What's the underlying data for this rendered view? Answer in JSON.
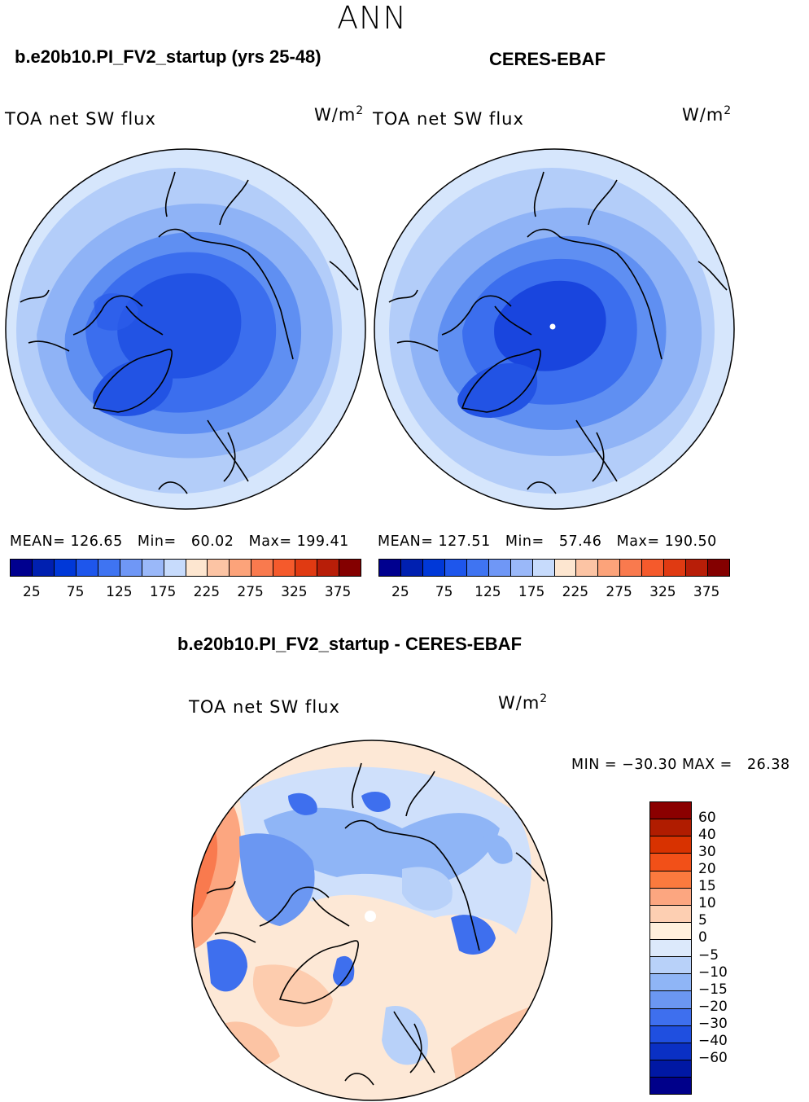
{
  "season_title": "ANN",
  "left_panel": {
    "case_title": "b.e20b10.PI_FV2_startup (yrs 25-48)",
    "variable": "TOA net SW flux",
    "units_base": "W/m",
    "units_exp": "2",
    "mean_label": "MEAN=",
    "mean_value": "126.65",
    "min_label": "Min=",
    "min_value": "60.02",
    "max_label": "Max=",
    "max_value": "199.41"
  },
  "right_panel": {
    "case_title": "CERES-EBAF",
    "variable": "TOA net SW flux",
    "units_base": "W/m",
    "units_exp": "2",
    "mean_label": "MEAN=",
    "mean_value": "127.51",
    "min_label": "Min=",
    "min_value": "57.46",
    "max_label": "Max=",
    "max_value": "190.50"
  },
  "abs_colorbar": {
    "colors": [
      "#00008f",
      "#0020b0",
      "#0038d8",
      "#1e56ec",
      "#3f74f2",
      "#6f97f6",
      "#9ab8f9",
      "#c7dbfc",
      "#fde6d0",
      "#fcc4a4",
      "#fca37a",
      "#f97a4e",
      "#f55a2c",
      "#e03a12",
      "#b81e08",
      "#840000"
    ],
    "tick_labels": [
      "25",
      "75",
      "125",
      "175",
      "225",
      "275",
      "325",
      "375"
    ]
  },
  "diff_panel": {
    "case_title": "b.e20b10.PI_FV2_startup - CERES-EBAF",
    "variable": "TOA net SW flux",
    "units_base": "W/m",
    "units_exp": "2",
    "min_label": "MIN =",
    "min_value": "−30.30",
    "max_label": "MAX =",
    "max_value": "26.38"
  },
  "diff_colorbar": {
    "colors": [
      "#8b0000",
      "#b01c00",
      "#d83200",
      "#f25018",
      "#fb7a3e",
      "#fca680",
      "#fdcfb2",
      "#fff0dc",
      "#dce9fb",
      "#b8d1f9",
      "#8fb5f6",
      "#6b97f2",
      "#3e6fee",
      "#1f4fe0",
      "#0a30c4",
      "#0018a4",
      "#00008a"
    ],
    "tick_labels": [
      "60",
      "40",
      "30",
      "20",
      "15",
      "10",
      "5",
      "0",
      "−5",
      "−10",
      "−15",
      "−20",
      "−30",
      "−40",
      "−60"
    ]
  }
}
